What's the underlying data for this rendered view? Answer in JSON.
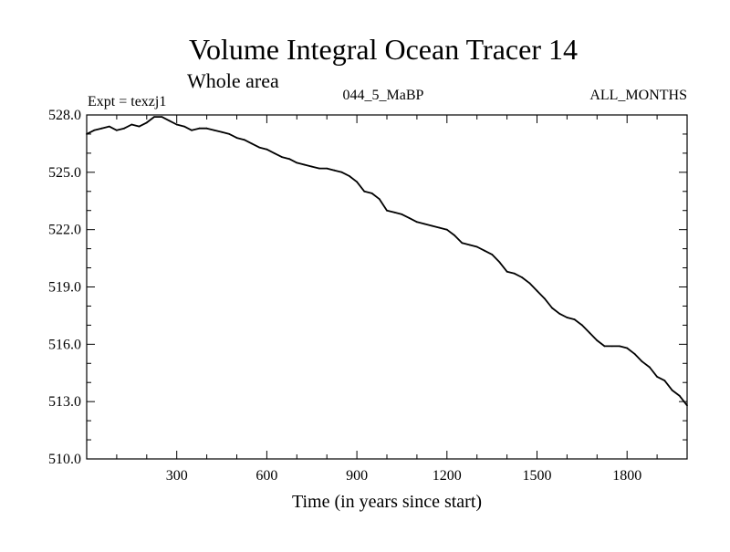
{
  "header": {
    "title": "Volume Integral Ocean Tracer 14",
    "subtitle": "Whole area",
    "left_note": "Expt = texzj1",
    "center_note": "044_5_MaBP",
    "right_note": "ALL_MONTHS"
  },
  "chart_data": {
    "type": "line",
    "title": "Volume Integral Ocean Tracer 14",
    "subtitle": "Whole area",
    "xlabel": "Time (in years since start)",
    "ylabel": "",
    "xlim": [
      0,
      2000
    ],
    "ylim": [
      510.0,
      528.0
    ],
    "xticks": [
      300,
      600,
      900,
      1200,
      1500,
      1800
    ],
    "xtick_labels": [
      "300",
      "600",
      "900",
      "1200",
      "1500",
      "1800"
    ],
    "yticks": [
      510.0,
      513.0,
      516.0,
      519.0,
      522.0,
      525.0,
      528.0
    ],
    "ytick_labels": [
      "510.0",
      "513.0",
      "516.0",
      "519.0",
      "522.0",
      "525.0",
      "528.0"
    ],
    "grid": false,
    "series": [
      {
        "color": "#000000",
        "x": [
          0,
          25,
          50,
          75,
          100,
          125,
          150,
          175,
          200,
          225,
          250,
          275,
          300,
          325,
          350,
          375,
          400,
          425,
          450,
          475,
          500,
          525,
          550,
          575,
          600,
          625,
          650,
          675,
          700,
          725,
          750,
          775,
          800,
          825,
          850,
          875,
          900,
          925,
          950,
          975,
          1000,
          1025,
          1050,
          1075,
          1100,
          1125,
          1150,
          1175,
          1200,
          1225,
          1250,
          1275,
          1300,
          1325,
          1350,
          1375,
          1400,
          1425,
          1450,
          1475,
          1500,
          1525,
          1550,
          1575,
          1600,
          1625,
          1650,
          1675,
          1700,
          1725,
          1750,
          1775,
          1800,
          1825,
          1850,
          1875,
          1900,
          1925,
          1950,
          1975,
          2000
        ],
        "values": [
          527.0,
          527.2,
          527.3,
          527.4,
          527.2,
          527.3,
          527.5,
          527.4,
          527.6,
          527.9,
          527.9,
          527.7,
          527.5,
          527.4,
          527.2,
          527.3,
          527.3,
          527.2,
          527.1,
          527.0,
          526.8,
          526.7,
          526.5,
          526.3,
          526.2,
          526.0,
          525.8,
          525.7,
          525.5,
          525.4,
          525.3,
          525.2,
          525.2,
          525.1,
          525.0,
          524.8,
          524.5,
          524.0,
          523.9,
          523.6,
          523.0,
          522.9,
          522.8,
          522.6,
          522.4,
          522.3,
          522.2,
          522.1,
          522.0,
          521.7,
          521.3,
          521.2,
          521.1,
          520.9,
          520.7,
          520.3,
          519.8,
          519.7,
          519.5,
          519.2,
          518.8,
          518.4,
          517.9,
          517.6,
          517.4,
          517.3,
          517.0,
          516.6,
          516.2,
          515.9,
          515.9,
          515.9,
          515.8,
          515.5,
          515.1,
          514.8,
          514.3,
          514.1,
          513.6,
          513.3,
          512.8
        ]
      }
    ]
  }
}
